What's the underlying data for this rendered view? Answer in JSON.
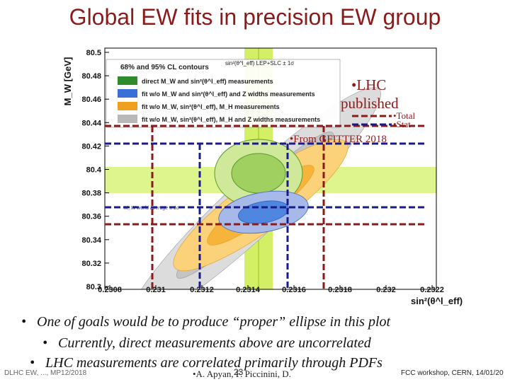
{
  "title": "Global EW fits in precision EW group",
  "plot": {
    "ylabel": "M_W [GeV]",
    "xlabel": "sin²(θ^l_eff)",
    "lep_label": "sin²(θ^l_eff) LEP+SLC ± 1σ",
    "y_ticks": [
      "80.5",
      "80.48",
      "80.46",
      "80.44",
      "80.42",
      "80.4",
      "80.38",
      "80.36",
      "80.34",
      "80.32",
      "80.3"
    ],
    "x_ticks": [
      "0.2308",
      "0.231",
      "0.2312",
      "0.2314",
      "0.2316",
      "0.2318",
      "0.232",
      "0.2322"
    ],
    "legend": {
      "title": "68% and 95% CL contours",
      "entries": [
        {
          "label": "direct M_W and sin²(θ^l_eff) measurements",
          "color": "#2e8b2e"
        },
        {
          "label": "fit w/o M_W and sin²(θ^l_eff) and Z widths measurements",
          "color": "#3a6fd8"
        },
        {
          "label": "fit w/o M_W, sin²(θ^l_eff), M_H measurements",
          "color": "#f0a020"
        },
        {
          "label": "fit w/o M_W, sin²(θ^l_eff), M_H and Z widths measurements",
          "color": "#b8b8b8"
        }
      ]
    },
    "world_avg_label": "M_W world average ± 1σ"
  },
  "annotations": {
    "lhc": "•LHC",
    "published": "published",
    "total": "•Total",
    "stat": "•Stat",
    "gfitter": "•From GFITTER 2018"
  },
  "bullets": [
    "One of goals would be to produce “proper” ellipse in this plot",
    "Currently, direct measurements above are uncorrelated",
    "LHC measurements are correlated primarily through PDFs"
  ],
  "footer": {
    "left": "DLHC EW, ..., MP12/2018",
    "center": "•A. Apyan, F. Piccinini, D.",
    "page": "23",
    "right": "FCC workshop, CERN, 14/01/20"
  },
  "colors": {
    "title": "#8b1a1a",
    "dashed_red": "#8b1a1a",
    "dashed_blue": "#1a1a8c",
    "band": "#c8ee50"
  }
}
